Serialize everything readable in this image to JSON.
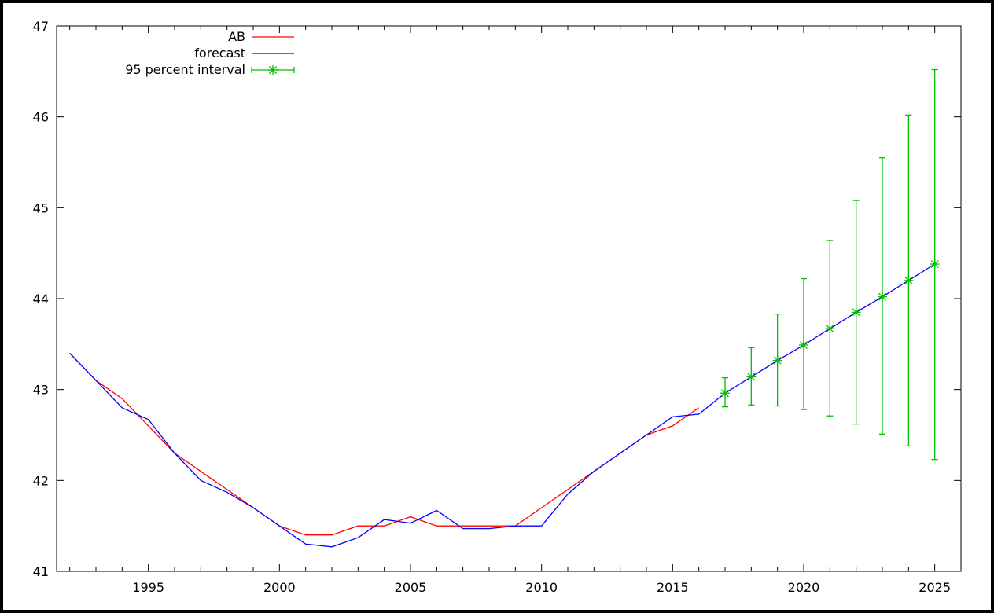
{
  "chart_data": {
    "type": "line",
    "title": "",
    "xlabel": "",
    "ylabel": "",
    "xlim": [
      1991.5,
      2026
    ],
    "ylim": [
      41,
      47
    ],
    "x_ticks": [
      1995,
      2000,
      2005,
      2010,
      2015,
      2020,
      2025
    ],
    "y_ticks": [
      41,
      42,
      43,
      44,
      45,
      46,
      47
    ],
    "grid": false,
    "legend_position": "top-left",
    "series": [
      {
        "name": "AB",
        "color": "#ff0000",
        "kind": "line",
        "x": [
          1992,
          1993,
          1994,
          1995,
          1996,
          1997,
          1998,
          1999,
          2000,
          2001,
          2002,
          2003,
          2004,
          2005,
          2006,
          2007,
          2008,
          2009,
          2010,
          2011,
          2012,
          2013,
          2014,
          2015,
          2016
        ],
        "y": [
          43.4,
          43.1,
          42.9,
          42.6,
          42.3,
          42.1,
          41.9,
          41.7,
          41.5,
          41.4,
          41.4,
          41.5,
          41.5,
          41.6,
          41.5,
          41.5,
          41.5,
          41.5,
          41.7,
          41.9,
          42.1,
          42.3,
          42.5,
          42.6,
          42.8
        ]
      },
      {
        "name": "forecast",
        "color": "#0000ff",
        "kind": "line",
        "x": [
          1992,
          1993,
          1994,
          1995,
          1996,
          1997,
          1998,
          1999,
          2000,
          2001,
          2002,
          2003,
          2004,
          2005,
          2006,
          2007,
          2008,
          2009,
          2010,
          2011,
          2012,
          2013,
          2014,
          2015,
          2016,
          2017,
          2018,
          2019,
          2020,
          2021,
          2022,
          2023,
          2024,
          2025
        ],
        "y": [
          43.4,
          43.1,
          42.8,
          42.67,
          42.3,
          42.0,
          41.87,
          41.7,
          41.5,
          41.3,
          41.27,
          41.37,
          41.57,
          41.53,
          41.67,
          41.47,
          41.47,
          41.5,
          41.5,
          41.85,
          42.1,
          42.3,
          42.5,
          42.7,
          42.73,
          42.96,
          43.14,
          43.32,
          43.49,
          43.67,
          43.85,
          44.02,
          44.2,
          44.38
        ]
      },
      {
        "name": "95 percent interval",
        "color": "#00c000",
        "kind": "errorbar",
        "x": [
          2017,
          2018,
          2019,
          2020,
          2021,
          2022,
          2023,
          2024,
          2025
        ],
        "y": [
          42.96,
          43.14,
          43.32,
          43.49,
          43.67,
          43.85,
          44.02,
          44.2,
          44.38
        ],
        "low": [
          42.81,
          42.83,
          42.82,
          42.78,
          42.71,
          42.62,
          42.51,
          42.38,
          42.23
        ],
        "high": [
          43.13,
          43.46,
          43.83,
          44.22,
          44.64,
          45.08,
          45.55,
          46.02,
          46.52
        ]
      }
    ]
  }
}
